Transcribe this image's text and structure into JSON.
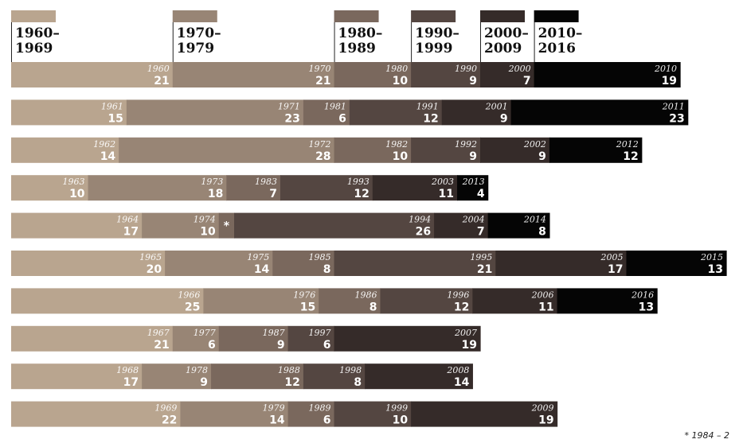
{
  "chart_data": {
    "type": "bar",
    "stacked": true,
    "orientation": "horizontal",
    "decades": [
      {
        "line1": "1960–",
        "line2": "1969",
        "color": "#b9a58f"
      },
      {
        "line1": "1970–",
        "line2": "1979",
        "color": "#988575"
      },
      {
        "line1": "1980–",
        "line2": "1989",
        "color": "#7a685d"
      },
      {
        "line1": "1990–",
        "line2": "1999",
        "color": "#544641"
      },
      {
        "line1": "2000–",
        "line2": "2009",
        "color": "#352b29"
      },
      {
        "line1": "2010–",
        "line2": "2016",
        "color": "#050505"
      }
    ],
    "rows": [
      [
        {
          "year": "1960",
          "value": 21
        },
        {
          "year": "1970",
          "value": 21
        },
        {
          "year": "1980",
          "value": 10
        },
        {
          "year": "1990",
          "value": 9
        },
        {
          "year": "2000",
          "value": 7
        },
        {
          "year": "2010",
          "value": 19
        }
      ],
      [
        {
          "year": "1961",
          "value": 15
        },
        {
          "year": "1971",
          "value": 23
        },
        {
          "year": "1981",
          "value": 6
        },
        {
          "year": "1991",
          "value": 12
        },
        {
          "year": "2001",
          "value": 9
        },
        {
          "year": "2011",
          "value": 23
        }
      ],
      [
        {
          "year": "1962",
          "value": 14
        },
        {
          "year": "1972",
          "value": 28
        },
        {
          "year": "1982",
          "value": 10
        },
        {
          "year": "1992",
          "value": 9
        },
        {
          "year": "2002",
          "value": 9
        },
        {
          "year": "2012",
          "value": 12
        }
      ],
      [
        {
          "year": "1963",
          "value": 10
        },
        {
          "year": "1973",
          "value": 18
        },
        {
          "year": "1983",
          "value": 7
        },
        {
          "year": "1993",
          "value": 12
        },
        {
          "year": "2003",
          "value": 11
        },
        {
          "year": "2013",
          "value": 4
        }
      ],
      [
        {
          "year": "1964",
          "value": 17
        },
        {
          "year": "1974",
          "value": 10
        },
        {
          "year": "1984",
          "value": 2,
          "marker": "*"
        },
        {
          "year": "1994",
          "value": 26
        },
        {
          "year": "2004",
          "value": 7
        },
        {
          "year": "2014",
          "value": 8
        }
      ],
      [
        {
          "year": "1965",
          "value": 20
        },
        {
          "year": "1975",
          "value": 14
        },
        {
          "year": "1985",
          "value": 8
        },
        {
          "year": "1995",
          "value": 21
        },
        {
          "year": "2005",
          "value": 17
        },
        {
          "year": "2015",
          "value": 13
        }
      ],
      [
        {
          "year": "1966",
          "value": 25
        },
        {
          "year": "1976",
          "value": 15
        },
        {
          "year": "1986",
          "value": 8
        },
        {
          "year": "1996",
          "value": 12
        },
        {
          "year": "2006",
          "value": 11
        },
        {
          "year": "2016",
          "value": 13
        }
      ],
      [
        {
          "year": "1967",
          "value": 21
        },
        {
          "year": "1977",
          "value": 6
        },
        {
          "year": "1987",
          "value": 9
        },
        {
          "year": "1997",
          "value": 6
        },
        {
          "year": "2007",
          "value": 19
        }
      ],
      [
        {
          "year": "1968",
          "value": 17
        },
        {
          "year": "1978",
          "value": 9
        },
        {
          "year": "1988",
          "value": 12
        },
        {
          "year": "1998",
          "value": 8
        },
        {
          "year": "2008",
          "value": 14
        }
      ],
      [
        {
          "year": "1969",
          "value": 22
        },
        {
          "year": "1979",
          "value": 14
        },
        {
          "year": "1989",
          "value": 6
        },
        {
          "year": "1999",
          "value": 10
        },
        {
          "year": "2009",
          "value": 19
        }
      ]
    ],
    "footnote": "* 1984 – 2"
  }
}
